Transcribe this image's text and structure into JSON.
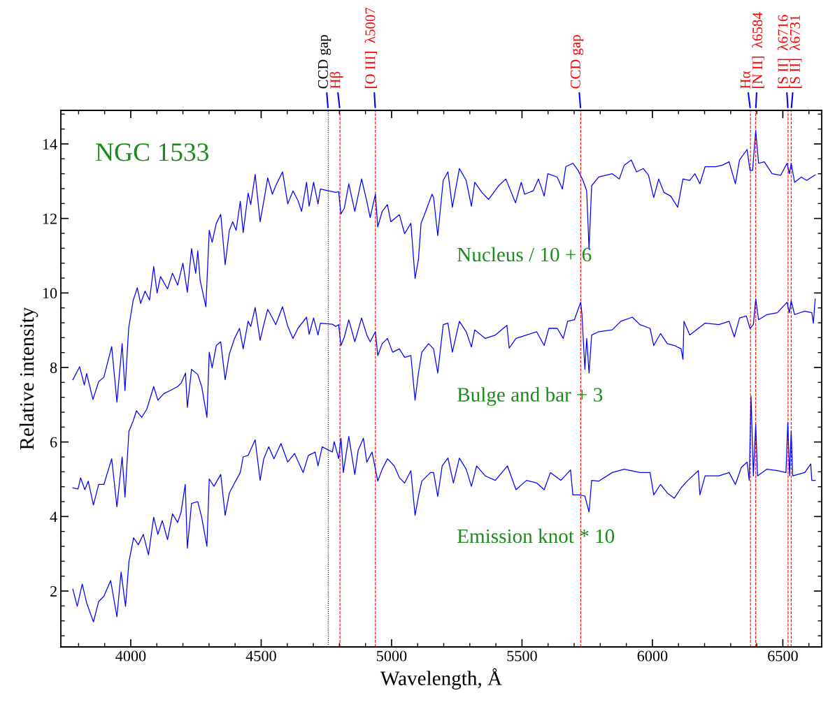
{
  "chart_data": {
    "type": "line",
    "title": "NGC 1533",
    "xlabel": "Wavelength, Å",
    "ylabel": "Relative intensity",
    "xlim": [
      3732,
      6649
    ],
    "ylim": [
      0.5,
      14.9
    ],
    "xticks": [
      4000,
      4500,
      5000,
      5500,
      6000,
      6500
    ],
    "yticks": [
      2,
      4,
      6,
      8,
      10,
      12,
      14
    ],
    "grid": false,
    "legend": false,
    "marker": "none",
    "line_style": "solid",
    "series": [
      {
        "name": "Nucleus / 10 + 6",
        "color": "#0000ff",
        "x": [
          3778,
          3804,
          3822,
          3831,
          3855,
          3877,
          3897,
          3927,
          3947,
          3967,
          3978,
          3992,
          4009,
          4025,
          4038,
          4055,
          4072,
          4088,
          4101,
          4114,
          4141,
          4160,
          4180,
          4200,
          4217,
          4233,
          4249,
          4257,
          4266,
          4288,
          4301,
          4312,
          4328,
          4345,
          4362,
          4378,
          4391,
          4404,
          4420,
          4431,
          4450,
          4460,
          4477,
          4496,
          4510,
          4525,
          4543,
          4556,
          4582,
          4602,
          4622,
          4641,
          4655,
          4674,
          4684,
          4701,
          4718,
          4727,
          4786,
          4797,
          4806,
          4819,
          4836,
          4859,
          4885,
          4905,
          4918,
          4929,
          4938,
          4947,
          4964,
          4984,
          4997,
          5030,
          5050,
          5074,
          5090,
          5103,
          5113,
          5126,
          5155,
          5161,
          5177,
          5198,
          5216,
          5233,
          5260,
          5286,
          5306,
          5319,
          5346,
          5372,
          5411,
          5438,
          5475,
          5497,
          5510,
          5543,
          5563,
          5585,
          5599,
          5635,
          5655,
          5668,
          5695,
          5715,
          5734,
          5748,
          5757,
          5767,
          5794,
          5846,
          5873,
          5892,
          5919,
          5939,
          5965,
          5985,
          6005,
          6024,
          6044,
          6070,
          6097,
          6117,
          6143,
          6163,
          6182,
          6202,
          6242,
          6268,
          6294,
          6318,
          6334,
          6363,
          6374,
          6384,
          6396,
          6407,
          6429,
          6459,
          6492,
          6516,
          6525,
          6532,
          6545,
          6571,
          6591,
          6624
        ],
        "values": [
          7.67,
          8.02,
          7.53,
          7.84,
          7.14,
          7.62,
          7.74,
          8.56,
          7.07,
          8.64,
          7.38,
          9.05,
          9.79,
          10.14,
          9.72,
          10.05,
          9.81,
          10.71,
          10.0,
          10.44,
          10.11,
          10.53,
          10.21,
          10.8,
          10.02,
          11.19,
          10.53,
          11.13,
          10.34,
          9.63,
          11.68,
          11.36,
          11.87,
          12.11,
          10.76,
          11.68,
          11.91,
          11.68,
          12.46,
          11.62,
          12.68,
          12.37,
          13.18,
          11.91,
          12.46,
          13.09,
          12.65,
          12.88,
          13.25,
          12.39,
          12.74,
          12.48,
          12.19,
          12.97,
          12.33,
          12.97,
          12.39,
          12.79,
          12.7,
          12.72,
          12.12,
          12.28,
          12.93,
          12.19,
          13.06,
          12.46,
          12.02,
          12.37,
          12.65,
          11.77,
          12.19,
          12.37,
          11.91,
          12.1,
          11.59,
          11.87,
          10.39,
          10.9,
          11.87,
          12.1,
          12.65,
          12.56,
          11.54,
          13.02,
          13.25,
          12.3,
          13.34,
          13.02,
          12.33,
          12.97,
          12.7,
          12.51,
          12.88,
          13.06,
          12.42,
          12.97,
          12.65,
          12.74,
          13.06,
          12.6,
          13.2,
          13.11,
          12.79,
          13.39,
          13.48,
          13.29,
          13.02,
          12.74,
          11.17,
          12.88,
          13.11,
          13.2,
          13.06,
          13.43,
          13.57,
          13.25,
          13.34,
          13.16,
          12.56,
          13.06,
          12.7,
          12.6,
          12.3,
          13.06,
          13.02,
          13.2,
          12.93,
          13.39,
          13.39,
          13.43,
          13.52,
          12.93,
          13.57,
          13.85,
          13.29,
          13.29,
          14.36,
          13.48,
          13.52,
          13.2,
          13.16,
          13.48,
          13.2,
          13.48,
          12.97,
          13.11,
          13.02,
          13.17
        ]
      },
      {
        "name": "Bulge and bar + 3",
        "color": "#0000ff",
        "x": [
          3778,
          3798,
          3808,
          3824,
          3837,
          3857,
          3877,
          3897,
          3927,
          3947,
          3967,
          3978,
          3993,
          4009,
          4022,
          4042,
          4062,
          4088,
          4104,
          4127,
          4154,
          4180,
          4193,
          4210,
          4217,
          4233,
          4257,
          4272,
          4292,
          4301,
          4312,
          4328,
          4345,
          4362,
          4378,
          4398,
          4417,
          4431,
          4450,
          4460,
          4477,
          4496,
          4510,
          4525,
          4543,
          4556,
          4582,
          4602,
          4622,
          4641,
          4674,
          4684,
          4701,
          4718,
          4727,
          4773,
          4786,
          4797,
          4806,
          4819,
          4836,
          4859,
          4885,
          4905,
          4918,
          4938,
          4947,
          4964,
          4984,
          5004,
          5030,
          5050,
          5074,
          5090,
          5103,
          5116,
          5142,
          5161,
          5177,
          5198,
          5216,
          5233,
          5260,
          5286,
          5306,
          5319,
          5359,
          5398,
          5442,
          5451,
          5477,
          5517,
          5556,
          5585,
          5603,
          5635,
          5658,
          5675,
          5701,
          5715,
          5725,
          5730,
          5741,
          5748,
          5757,
          5767,
          5794,
          5846,
          5879,
          5923,
          5952,
          5991,
          6005,
          6031,
          6057,
          6084,
          6110,
          6117,
          6121,
          6143,
          6176,
          6202,
          6255,
          6294,
          6314,
          6334,
          6360,
          6374,
          6387,
          6396,
          6407,
          6439,
          6479,
          6516,
          6525,
          6532,
          6545,
          6584,
          6611,
          6617,
          6624
        ],
        "values": [
          4.77,
          4.74,
          5.04,
          4.72,
          4.95,
          4.31,
          4.86,
          4.86,
          5.55,
          4.26,
          5.6,
          4.52,
          6.29,
          6.56,
          6.84,
          6.66,
          6.89,
          7.49,
          7.12,
          7.3,
          7.39,
          7.49,
          7.58,
          7.85,
          6.93,
          7.95,
          7.81,
          7.49,
          6.66,
          8.41,
          7.99,
          8.59,
          8.69,
          7.67,
          8.36,
          8.78,
          9.05,
          8.5,
          9.24,
          9.1,
          9.61,
          8.73,
          9.15,
          9.56,
          9.33,
          9.15,
          9.63,
          9.1,
          8.78,
          9.05,
          9.35,
          8.89,
          9.33,
          8.87,
          9.19,
          9.16,
          9.1,
          9.15,
          8.59,
          8.82,
          9.28,
          8.69,
          9.33,
          8.87,
          8.69,
          8.96,
          8.32,
          8.64,
          8.78,
          8.41,
          8.5,
          8.27,
          8.32,
          7.12,
          7.85,
          8.41,
          8.64,
          8.5,
          7.85,
          9.15,
          9.19,
          8.41,
          9.24,
          8.96,
          8.55,
          9.01,
          8.78,
          8.87,
          9.13,
          8.52,
          8.78,
          8.87,
          8.96,
          8.59,
          9.05,
          9.05,
          8.78,
          9.24,
          9.28,
          9.56,
          9.75,
          9.42,
          7.95,
          8.78,
          7.85,
          8.87,
          8.96,
          9.01,
          9.24,
          9.35,
          9.15,
          9.05,
          8.59,
          8.91,
          8.64,
          8.59,
          8.5,
          8.22,
          9.24,
          8.87,
          9.05,
          9.19,
          9.15,
          9.24,
          8.82,
          9.33,
          9.38,
          9.05,
          9.15,
          9.84,
          9.28,
          9.42,
          9.47,
          9.75,
          9.47,
          9.79,
          9.42,
          9.51,
          9.47,
          9.19,
          9.84
        ]
      },
      {
        "name": "Emission knot * 10",
        "color": "#0000ff",
        "x": [
          3778,
          3795,
          3814,
          3831,
          3857,
          3877,
          3897,
          3923,
          3930,
          3947,
          3963,
          3980,
          3993,
          4011,
          4029,
          4048,
          4068,
          4088,
          4104,
          4121,
          4141,
          4160,
          4180,
          4193,
          4209,
          4217,
          4233,
          4257,
          4272,
          4292,
          4301,
          4319,
          4345,
          4362,
          4378,
          4398,
          4420,
          4431,
          4450,
          4477,
          4496,
          4510,
          4529,
          4549,
          4576,
          4602,
          4628,
          4661,
          4681,
          4707,
          4718,
          4734,
          4773,
          4780,
          4797,
          4806,
          4815,
          4836,
          4859,
          4872,
          4892,
          4905,
          4925,
          4938,
          4947,
          4964,
          4984,
          5010,
          5030,
          5050,
          5074,
          5090,
          5103,
          5116,
          5149,
          5161,
          5177,
          5194,
          5216,
          5237,
          5260,
          5286,
          5306,
          5326,
          5359,
          5398,
          5444,
          5477,
          5517,
          5556,
          5585,
          5609,
          5649,
          5686,
          5695,
          5721,
          5741,
          5757,
          5767,
          5794,
          5846,
          5892,
          5952,
          5991,
          6005,
          6031,
          6057,
          6084,
          6110,
          6136,
          6176,
          6182,
          6202,
          6255,
          6294,
          6318,
          6341,
          6363,
          6371,
          6378,
          6387,
          6396,
          6403,
          6439,
          6479,
          6512,
          6519,
          6526,
          6532,
          6538,
          6584,
          6607,
          6611,
          6624
        ],
        "values": [
          2.05,
          1.59,
          2.19,
          1.68,
          1.17,
          1.72,
          1.86,
          2.28,
          2.0,
          1.31,
          2.51,
          1.59,
          2.78,
          3.43,
          3.24,
          3.52,
          2.97,
          3.98,
          3.52,
          3.89,
          3.38,
          4.07,
          3.84,
          4.12,
          4.86,
          3.15,
          4.35,
          4.4,
          3.98,
          3.2,
          5.01,
          4.81,
          5.13,
          4.03,
          4.63,
          4.9,
          5.18,
          5.6,
          5.64,
          6.06,
          4.97,
          5.55,
          5.87,
          5.55,
          5.96,
          5.46,
          5.69,
          5.18,
          5.64,
          5.73,
          5.36,
          5.87,
          5.73,
          6.01,
          5.55,
          6.1,
          5.18,
          6.15,
          5.13,
          5.78,
          6.1,
          5.46,
          5.73,
          5.27,
          4.95,
          5.27,
          5.55,
          5.36,
          5.04,
          4.9,
          5.23,
          4.03,
          4.54,
          4.95,
          5.18,
          5.18,
          4.54,
          5.36,
          5.57,
          4.9,
          5.57,
          5.27,
          4.81,
          5.36,
          5.09,
          4.97,
          5.36,
          4.72,
          4.97,
          4.9,
          4.72,
          5.18,
          4.97,
          5.25,
          4.58,
          4.58,
          4.55,
          4.12,
          4.97,
          4.95,
          5.18,
          5.27,
          5.18,
          5.18,
          4.58,
          4.86,
          4.63,
          4.49,
          4.77,
          4.97,
          5.23,
          4.58,
          5.09,
          5.09,
          5.18,
          4.86,
          5.32,
          5.46,
          4.97,
          7.23,
          5.09,
          6.47,
          5.09,
          5.27,
          5.23,
          5.18,
          6.52,
          5.09,
          6.29,
          5.09,
          5.18,
          5.41,
          4.97,
          4.97
        ]
      }
    ],
    "ref_lines": [
      {
        "axis": "x",
        "value": 4757,
        "label": "CCD gap",
        "color": "#000000",
        "line_style": "dotted"
      },
      {
        "axis": "x",
        "value": 4802,
        "label": "Hβ",
        "color": "#ff0000",
        "line_style": "dashed"
      },
      {
        "axis": "x",
        "value": 4938,
        "label": "[O III]  λ5007",
        "color": "#ff0000",
        "line_style": "dashed"
      },
      {
        "axis": "x",
        "value": 5725,
        "label": "CCD gap",
        "color": "#ff0000",
        "line_style": "dashed"
      },
      {
        "axis": "x",
        "value": 6376,
        "label": "Hα",
        "color": "#ff0000",
        "line_style": "dashed"
      },
      {
        "axis": "x",
        "value": 6396,
        "label": "[N II]  λ6584",
        "color": "#ff0000",
        "line_style": "dashed"
      },
      {
        "axis": "x",
        "value": 6520,
        "label": "[S II]  λ6716",
        "color": "#ff0000",
        "line_style": "dashed"
      },
      {
        "axis": "x",
        "value": 6532,
        "label": "[S II]  λ6731",
        "color": "#ff0000",
        "line_style": "dashed"
      }
    ]
  }
}
